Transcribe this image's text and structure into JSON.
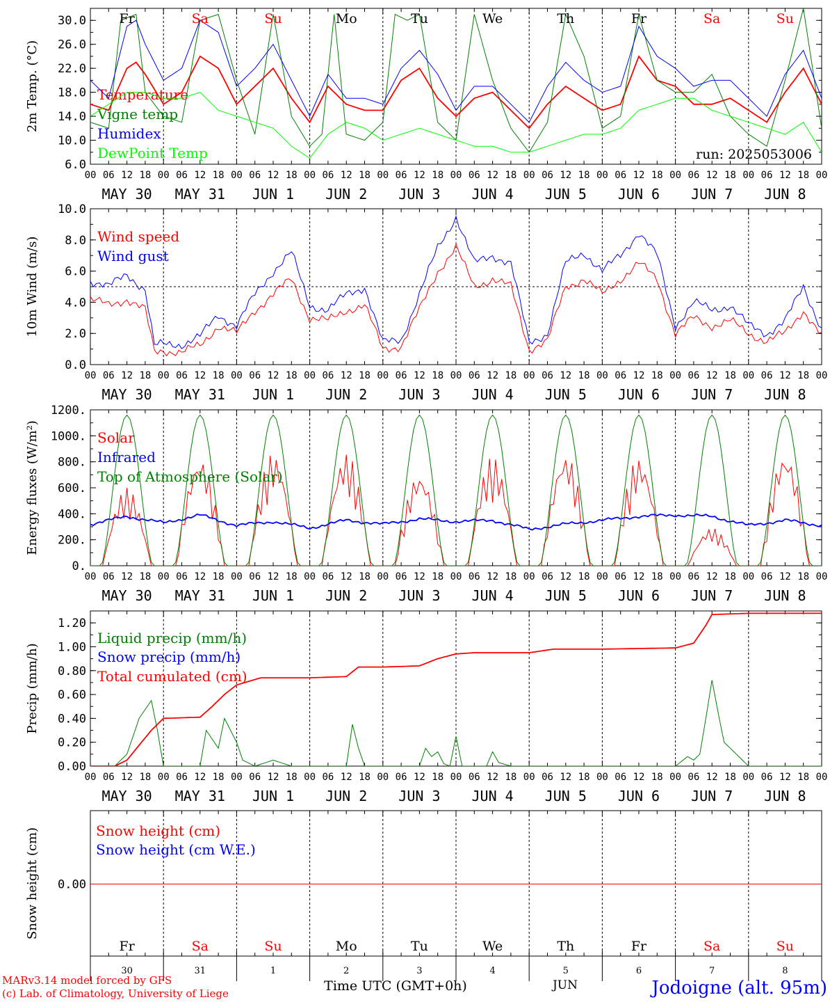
{
  "footer": {
    "model_line": "MARv3.14 model forced by GFS",
    "lab_line": "(c) Lab. of Climatology, University of Liege",
    "axis_title": "Time UTC (GMT+0h)",
    "month": "JUN",
    "station": "Jodoigne (alt. 95m)"
  },
  "hour_labels": [
    "00",
    "06",
    "12",
    "18"
  ],
  "date_labels": [
    "MAY 30",
    "MAY 31",
    "JUN  1",
    "JUN  2",
    "JUN  3",
    "JUN  4",
    "JUN  5",
    "JUN  6",
    "JUN  7",
    "JUN  8"
  ],
  "day_names": [
    "Fr",
    "Sa",
    "Su",
    "Mo",
    "Tu",
    "We",
    "Th",
    "Fr",
    "Sa",
    "Su"
  ],
  "day_numbers": [
    "30",
    "31",
    "1",
    "2",
    "3",
    "4",
    "5",
    "6",
    "7",
    "8"
  ],
  "weekend_days": [
    1,
    2,
    8,
    9
  ],
  "colors": {
    "red": "#ff0000",
    "green": "#008000",
    "blue": "#0000ff",
    "lime": "#00ff00",
    "black": "#000000",
    "weekend": "#ff0000"
  },
  "chart_data": [
    {
      "type": "line",
      "ylabel": "2m Temp. (°C)",
      "ylim": [
        6,
        32
      ],
      "yticks": [
        "6.0",
        "10.0",
        "14.0",
        "18.0",
        "22.0",
        "26.0",
        "30.0"
      ],
      "run_label": "run: 2025053006",
      "x_unit": "hours since May 30 00 UTC",
      "series": [
        {
          "name": "Temperature",
          "color": "#ff0000",
          "x": [
            0,
            6,
            12,
            15,
            18,
            24,
            30,
            36,
            42,
            48,
            54,
            60,
            66,
            72,
            78,
            84,
            90,
            96,
            102,
            108,
            114,
            120,
            126,
            132,
            138,
            144,
            150,
            156,
            162,
            168,
            174,
            180,
            186,
            192,
            198,
            204,
            210,
            216,
            222,
            228,
            234,
            240
          ],
          "values": [
            16,
            15,
            22,
            23,
            21,
            16,
            18,
            24,
            22,
            16,
            19,
            22,
            17,
            13,
            19,
            16,
            15,
            15,
            20,
            22,
            17,
            14,
            17,
            18,
            15,
            12,
            16,
            19,
            17,
            15,
            16,
            24,
            20,
            19,
            16,
            16,
            17,
            15,
            13,
            18,
            22,
            16
          ]
        },
        {
          "name": "Vigne temp",
          "color": "#008000",
          "x": [
            0,
            6,
            10,
            15,
            18,
            24,
            30,
            36,
            42,
            48,
            54,
            60,
            66,
            72,
            76,
            80,
            84,
            90,
            96,
            100,
            104,
            108,
            114,
            120,
            126,
            132,
            138,
            144,
            150,
            156,
            162,
            168,
            174,
            180,
            186,
            192,
            198,
            204,
            210,
            216,
            222,
            228,
            234,
            240
          ],
          "values": [
            13,
            12,
            30,
            31,
            18,
            14,
            13,
            30,
            31,
            20,
            11,
            31,
            14,
            9,
            11,
            31,
            11,
            10,
            13,
            31,
            30,
            31,
            13,
            10,
            31,
            20,
            12,
            8,
            13,
            31,
            24,
            12,
            14,
            31,
            20,
            18,
            18,
            21,
            14,
            11,
            9,
            20,
            32,
            12
          ]
        },
        {
          "name": "Humidex",
          "color": "#0000ff",
          "x": [
            0,
            6,
            12,
            15,
            18,
            24,
            30,
            36,
            42,
            48,
            54,
            60,
            66,
            72,
            78,
            84,
            90,
            96,
            102,
            108,
            114,
            120,
            126,
            132,
            138,
            144,
            150,
            156,
            162,
            168,
            174,
            180,
            186,
            192,
            198,
            204,
            210,
            216,
            222,
            228,
            234,
            240
          ],
          "values": [
            20,
            17,
            29,
            30,
            26,
            20,
            22,
            30,
            28,
            19,
            22,
            26,
            20,
            14,
            21,
            17,
            17,
            16,
            22,
            25,
            21,
            15,
            19,
            19,
            16,
            13,
            19,
            23,
            20,
            18,
            19,
            29,
            24,
            22,
            19,
            20,
            20,
            17,
            14,
            21,
            25,
            17
          ]
        },
        {
          "name": "DewPoint Temp",
          "color": "#00ff00",
          "x": [
            0,
            6,
            12,
            18,
            24,
            30,
            36,
            42,
            48,
            54,
            60,
            66,
            72,
            78,
            84,
            90,
            96,
            102,
            108,
            114,
            120,
            126,
            132,
            138,
            144,
            150,
            156,
            162,
            168,
            174,
            180,
            186,
            192,
            198,
            204,
            210,
            216,
            222,
            228,
            234,
            240
          ],
          "values": [
            14,
            16,
            18,
            18,
            17,
            17,
            18,
            15,
            14,
            13,
            12,
            9,
            7,
            11,
            13,
            12,
            10,
            11,
            12,
            11,
            10,
            9,
            9,
            8,
            8,
            9,
            10,
            11,
            11,
            12,
            15,
            16,
            17,
            17,
            15,
            14,
            13,
            12,
            11,
            13,
            8
          ]
        }
      ]
    },
    {
      "type": "line",
      "ylabel": "10m Wind (m/s)",
      "ylim": [
        0,
        10
      ],
      "yticks": [
        "0.0",
        "2.0",
        "4.0",
        "6.0",
        "8.0",
        "10.0"
      ],
      "reference_line": 5,
      "series": [
        {
          "name": "Wind speed",
          "color": "#ff0000",
          "x": [
            0,
            6,
            12,
            18,
            21,
            24,
            30,
            36,
            42,
            48,
            54,
            60,
            66,
            72,
            78,
            84,
            90,
            96,
            102,
            108,
            114,
            120,
            126,
            132,
            138,
            144,
            150,
            156,
            162,
            168,
            174,
            180,
            186,
            192,
            198,
            204,
            210,
            216,
            222,
            228,
            234,
            240
          ],
          "values": [
            4.2,
            3.8,
            4.2,
            3.5,
            0.8,
            0.9,
            0.8,
            1.2,
            2.5,
            2.0,
            3.5,
            4.5,
            5.5,
            3.0,
            2.8,
            3.5,
            3.8,
            1.0,
            1.2,
            3.5,
            6.0,
            7.5,
            5.0,
            5.5,
            5.0,
            1.0,
            1.5,
            5.0,
            5.5,
            4.5,
            5.5,
            6.5,
            5.5,
            2.0,
            3.0,
            2.5,
            2.8,
            2.0,
            1.5,
            2.0,
            3.5,
            1.8
          ]
        },
        {
          "name": "Wind gust",
          "color": "#0000ff",
          "x": [
            0,
            6,
            12,
            18,
            21,
            24,
            30,
            36,
            42,
            48,
            54,
            60,
            66,
            72,
            78,
            84,
            90,
            96,
            102,
            108,
            114,
            120,
            126,
            132,
            138,
            144,
            150,
            156,
            162,
            168,
            174,
            180,
            186,
            192,
            198,
            204,
            210,
            216,
            222,
            228,
            234,
            240
          ],
          "values": [
            5.4,
            5.0,
            5.8,
            4.8,
            1.2,
            1.3,
            1.3,
            1.8,
            3.2,
            2.5,
            4.5,
            6.0,
            7.2,
            3.8,
            3.5,
            4.5,
            5.0,
            1.4,
            1.6,
            4.5,
            7.5,
            9.5,
            6.5,
            7.0,
            6.5,
            1.4,
            2.0,
            6.5,
            7.2,
            6.0,
            7.0,
            8.5,
            7.0,
            2.5,
            4.0,
            3.5,
            3.8,
            2.5,
            2.0,
            2.8,
            5.0,
            2.3
          ]
        }
      ]
    },
    {
      "type": "line",
      "ylabel": "Energy fluxes (W/m²)",
      "ylim": [
        0,
        1200
      ],
      "yticks": [
        "0.",
        "200.",
        "400.",
        "600.",
        "800.",
        "1000.",
        "1200."
      ],
      "series": [
        {
          "name": "Solar",
          "color": "#ff0000",
          "peaks": [
            600,
            840,
            870,
            870,
            720,
            840,
            870,
            840,
            290,
            880
          ]
        },
        {
          "name": "Infrared",
          "color": "#0000ff",
          "x": [
            0,
            12,
            24,
            36,
            48,
            60,
            72,
            84,
            96,
            108,
            120,
            132,
            144,
            156,
            168,
            180,
            192,
            204,
            216,
            228,
            240
          ],
          "values": [
            320,
            380,
            330,
            390,
            310,
            340,
            290,
            350,
            320,
            360,
            340,
            350,
            280,
            320,
            350,
            380,
            390,
            380,
            310,
            350,
            310
          ]
        },
        {
          "name": "Top of Atmosphere (Solar)",
          "color": "#008000",
          "peak": 1160
        }
      ]
    },
    {
      "type": "line",
      "ylabel": "Precip (mm/h)",
      "ylim": [
        0,
        1.3
      ],
      "yticks": [
        "0.00",
        "0.20",
        "0.40",
        "0.60",
        "0.80",
        "1.00",
        "1.20"
      ],
      "series": [
        {
          "name": "Liquid precip (mm/h)",
          "color": "#008000",
          "x": [
            0,
            8,
            12,
            16,
            20,
            22,
            24,
            30,
            36,
            38,
            42,
            44,
            48,
            50,
            54,
            60,
            66,
            72,
            84,
            86,
            88,
            90,
            96,
            108,
            110,
            112,
            114,
            116,
            118,
            120,
            122,
            124,
            126,
            130,
            132,
            134,
            138,
            144,
            192,
            196,
            198,
            200,
            202,
            204,
            206,
            208,
            216,
            240
          ],
          "values": [
            0,
            0,
            0.1,
            0.4,
            0.55,
            0.3,
            0,
            0,
            0,
            0.3,
            0.15,
            0.4,
            0.2,
            0.05,
            0,
            0.05,
            0,
            0,
            0,
            0.35,
            0.15,
            0,
            0,
            0,
            0.15,
            0.08,
            0.12,
            0.02,
            0,
            0.25,
            0,
            0,
            0,
            0,
            0.12,
            0.03,
            0,
            0,
            0,
            0.08,
            0.05,
            0.1,
            0.4,
            0.72,
            0.45,
            0.2,
            0,
            0
          ]
        },
        {
          "name": "Snow precip (mm/h)",
          "color": "#0000ff",
          "values": []
        },
        {
          "name": "Total cumulated (cm)",
          "color": "#ff0000",
          "x": [
            0,
            8,
            12,
            20,
            24,
            36,
            40,
            44,
            48,
            56,
            72,
            84,
            88,
            96,
            108,
            114,
            120,
            126,
            144,
            152,
            168,
            192,
            198,
            202,
            204,
            216,
            240
          ],
          "values": [
            0,
            0,
            0.05,
            0.3,
            0.4,
            0.41,
            0.5,
            0.6,
            0.68,
            0.74,
            0.74,
            0.75,
            0.83,
            0.83,
            0.84,
            0.9,
            0.94,
            0.95,
            0.95,
            0.98,
            0.98,
            0.99,
            1.03,
            1.18,
            1.27,
            1.28,
            1.28
          ]
        }
      ]
    },
    {
      "type": "line",
      "ylabel": "Snow height (cm)",
      "yticks": [
        "0.00"
      ],
      "series": [
        {
          "name": "Snow height (cm)",
          "color": "#ff0000",
          "x": [
            0,
            240
          ],
          "values": [
            0,
            0
          ]
        },
        {
          "name": "Snow height (cm W.E.)",
          "color": "#0000ff",
          "values": []
        }
      ]
    }
  ]
}
